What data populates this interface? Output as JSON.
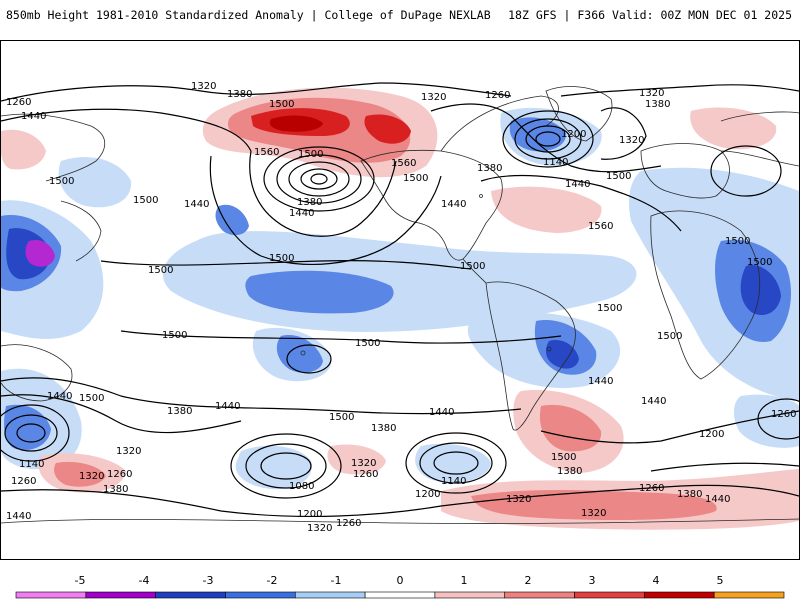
{
  "header": {
    "title": "850mb Height 1981-2010 Standardized Anomaly | College of DuPage NEXLAB",
    "run_info": "18Z GFS | F366 Valid: 00Z MON DEC 01 2025"
  },
  "colorbar": {
    "ticks": [
      "-5",
      "-4",
      "-3",
      "-2",
      "-1",
      "0",
      "1",
      "2",
      "3",
      "4",
      "5"
    ],
    "colors": [
      "#f07ef0",
      "#a000c8",
      "#1f3fbf",
      "#3a6fe0",
      "#a7cdf5",
      "#ffffff",
      "#f5c0c0",
      "#ee8080",
      "#e04040",
      "#c00000",
      "#f5a020"
    ]
  },
  "colors": {
    "neg1": "#c6dcf7",
    "neg2": "#5a86e6",
    "neg3": "#2747c4",
    "neg5": "#b428d2",
    "pos1": "#f6c9c9",
    "pos2": "#ec8787",
    "pos3": "#d82020",
    "pos4": "#b80000",
    "coast": "#2a2a2a",
    "contour": "#000000"
  },
  "contour_labels": [
    "1320",
    "1380",
    "1260",
    "1440",
    "1500",
    "1560",
    "1200",
    "1140",
    "1080"
  ]
}
